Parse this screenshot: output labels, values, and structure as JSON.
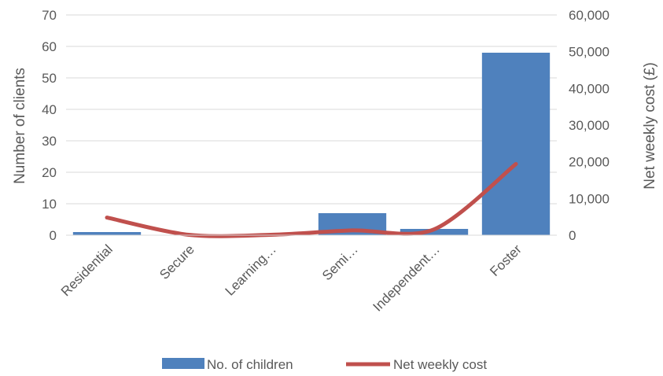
{
  "chart_data": {
    "type": "bar",
    "categories": [
      "Residential",
      "Secure",
      "Learning…",
      "Semi…",
      "Independent…",
      "Foster"
    ],
    "series": [
      {
        "name": "No. of children",
        "type": "bar",
        "axis": "left",
        "color": "#4F81BD",
        "values": [
          1,
          0,
          0,
          7,
          2,
          58
        ]
      },
      {
        "name": "Net weekly cost",
        "type": "line",
        "axis": "right",
        "color": "#C0504D",
        "values": [
          4800,
          100,
          100,
          1300,
          1600,
          19400
        ]
      }
    ],
    "ylabel": "Number of clients",
    "y2label": "Net weekly cost (£)",
    "ylim": [
      0,
      70
    ],
    "y2lim": [
      0,
      60000
    ],
    "yticks": [
      "0",
      "10",
      "20",
      "30",
      "40",
      "50",
      "60",
      "70"
    ],
    "y2ticks": [
      "0",
      "10,000",
      "20,000",
      "30,000",
      "40,000",
      "50,000",
      "60,000"
    ],
    "grid": true,
    "legend_position": "bottom"
  }
}
